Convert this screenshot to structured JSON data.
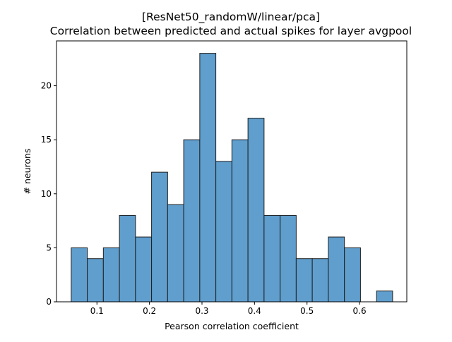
{
  "chart_data": {
    "type": "bar",
    "title_line1": "[ResNet50_randomW/linear/pca]",
    "title_line2": "Correlation between predicted and actual spikes for layer avgpool",
    "xlabel": "Pearson correlation coefficient",
    "ylabel": "# neurons",
    "xlim": [
      0.023,
      0.69
    ],
    "ylim": [
      0,
      24.15
    ],
    "xticks": [
      0.1,
      0.2,
      0.3,
      0.4,
      0.5,
      0.6
    ],
    "xtick_labels": [
      "0.1",
      "0.2",
      "0.3",
      "0.4",
      "0.5",
      "0.6"
    ],
    "yticks": [
      0,
      5,
      10,
      15,
      20
    ],
    "ytick_labels": [
      "0",
      "5",
      "10",
      "15",
      "20"
    ],
    "bin_start": 0.051,
    "bin_width": 0.0306,
    "values": [
      5,
      4,
      5,
      8,
      6,
      12,
      9,
      15,
      23,
      13,
      15,
      17,
      8,
      8,
      4,
      4,
      6,
      5,
      0,
      1
    ],
    "bar_color": "#5f9ecd",
    "edge_color": "#1f1f1f",
    "grid": false,
    "legend": "none"
  }
}
